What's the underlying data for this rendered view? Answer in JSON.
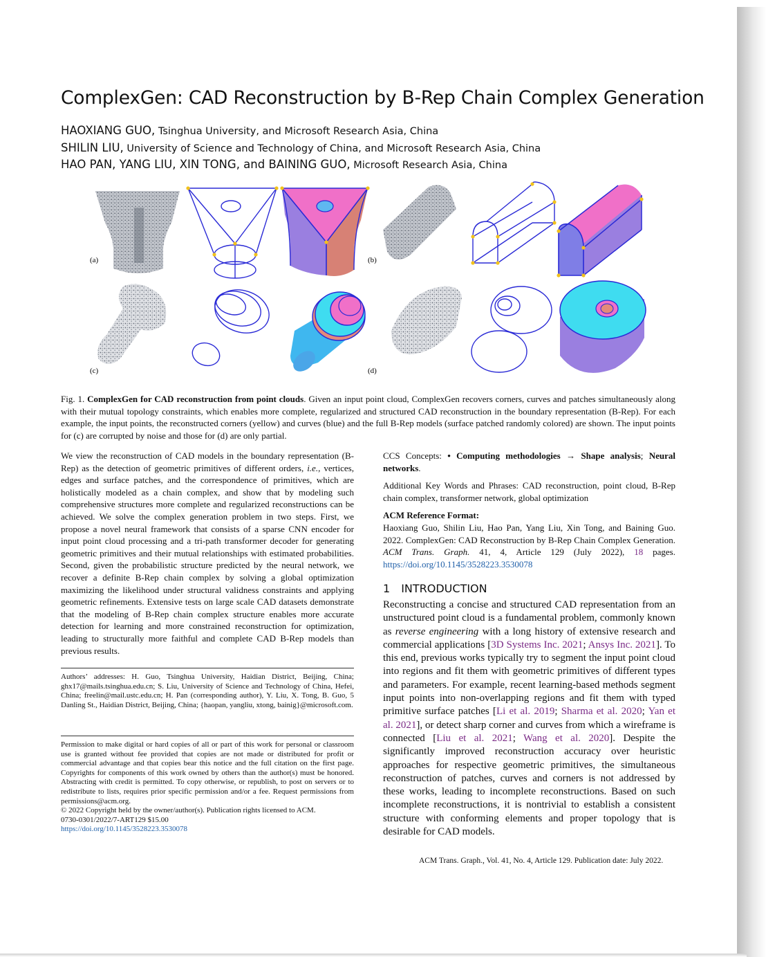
{
  "title": "ComplexGen: CAD Reconstruction by B-Rep Chain Complex Generation",
  "authors": [
    {
      "names": "HAOXIANG GUO,",
      "affiliation": " Tsinghua University, and Microsoft Research Asia, China"
    },
    {
      "names": "SHILIN LIU,",
      "affiliation": " University of Science and Technology of China, and Microsoft Research Asia, China"
    },
    {
      "names": "HAO PAN, YANG LIU, XIN TONG, and BAINING GUO,",
      "affiliation": " Microsoft Research Asia, China"
    }
  ],
  "figure": {
    "labels": [
      "(a)",
      "(b)",
      "(c)",
      "(d)"
    ],
    "colors": {
      "curve": "#2a2ad6",
      "corner": "#f2c21b",
      "pink": "#f070c8",
      "purple": "#9a7fe0",
      "salmon": "#e48a7a",
      "cyan": "#3fdcf0",
      "blue_sky": "#5fb8f0",
      "points": "#7d8591"
    }
  },
  "caption": {
    "prefix": "Fig. 1. ",
    "bold": "ComplexGen for CAD reconstruction from point clouds",
    "text": ". Given an input point cloud, ComplexGen recovers corners, curves and patches simultaneously along with their mutual topology constraints, which enables more complete, regularized and structured CAD reconstruction in the boundary representation (B-Rep). For each example, the input points, the reconstructed corners (yellow) and curves (blue) and the full B-Rep models (surface patched randomly colored) are shown. The input points for (c) are corrupted by noise and those for (d) are only partial."
  },
  "abstract": {
    "p1": "We view the reconstruction of CAD models in the boundary representation (B-Rep) as the detection of geometric primitives of different orders, ",
    "ie": "i.e.",
    "p2": ", vertices, edges and surface patches, and the correspondence of primitives, which are holistically modeled as a chain complex, and show that by modeling such comprehensive structures more complete and regularized reconstructions can be achieved. We solve the complex generation problem in two steps. First, we propose a novel neural framework that consists of a sparse CNN encoder for input point cloud processing and a tri-path transformer decoder for generating geometric primitives and their mutual relationships with estimated probabilities. Second, given the probabilistic structure predicted by the neural network, we recover a definite B-Rep chain complex by solving a global optimization maximizing the likelihood under structural validness constraints and applying geometric refinements. Extensive tests on large scale CAD datasets demonstrate that the modeling of B-Rep chain complex structure enables more accurate detection for learning and more constrained reconstruction for optimization, leading to structurally more faithful and complete CAD B-Rep models than previous results."
  },
  "ccs": {
    "label": "CCS Concepts: ",
    "b1": "• Computing methodologies → Shape analysis",
    "sep": "; ",
    "b2": "Neural networks",
    "end": "."
  },
  "keywords": "Additional Key Words and Phrases: CAD reconstruction, point cloud, B-Rep chain complex, transformer network, global optimization",
  "reference": {
    "heading": "ACM Reference Format:",
    "authors": "Haoxiang Guo, Shilin Liu, Hao Pan, Yang Liu, Xin Tong, and Baining Guo. 2022. ComplexGen: CAD Reconstruction by B-Rep Chain Complex Generation. ",
    "journal": "ACM Trans. Graph.",
    "details": " 41, 4, Article 129 (July 2022), ",
    "pages": "18",
    "pages_suffix": " pages. ",
    "doi": "https://doi.org/10.1145/3528223.3530078"
  },
  "intro": {
    "number": "1",
    "heading": "INTRODUCTION",
    "t1": "Reconstructing a concise and structured CAD representation from an unstructured point cloud is a fundamental problem, commonly known as ",
    "em1": "reverse engineering",
    "t2": " with a long history of extensive research and commercial applications [",
    "c1": "3D Systems Inc. 2021",
    "s1": "; ",
    "c2": "Ansys Inc. 2021",
    "t3": "]. To this end, previous works typically try to segment the input point cloud into regions and fit them with geometric primitives of different types and parameters. For example, recent learning-based methods segment input points into non-overlapping regions and fit them with typed primitive surface patches [",
    "c3": "Li et al. 2019",
    "s2": "; ",
    "c4": "Sharma et al. 2020",
    "s3": "; ",
    "c5": "Yan et al. 2021",
    "t4": "], or detect sharp corner and curves from which a wireframe is connected [",
    "c6": "Liu et al. 2021",
    "s4": "; ",
    "c7": "Wang et al. 2020",
    "t5": "]. Despite the significantly improved reconstruction accuracy over heuristic approaches for respective geometric primitives, the simultaneous reconstruction of patches, curves and corners is not addressed by these works, leading to incomplete reconstructions. Based on such incomplete reconstructions, it is nontrivial to establish a consistent structure with conforming elements and proper topology that is desirable for CAD models."
  },
  "authors_addresses": "Authors’ addresses: H. Guo, Tsinghua University, Haidian District, Beijing, China; ghx17@mails.tsinghua.edu.cn; S. Liu, University of Science and Technology of China, Hefei, China; freelin@mail.ustc.edu.cn; H. Pan (corresponding author), Y. Liu, X. Tong, B. Guo, 5 Danling St., Haidian District, Beijing, China; {haopan, yangliu, xtong, bainig}@microsoft.com.",
  "permission": {
    "text": "Permission to make digital or hard copies of all or part of this work for personal or classroom use is granted without fee provided that copies are not made or distributed for profit or commercial advantage and that copies bear this notice and the full citation on the first page. Copyrights for components of this work owned by others than the author(s) must be honored. Abstracting with credit is permitted. To copy otherwise, or republish, to post on servers or to redistribute to lists, requires prior specific permission and/or a fee. Request permissions from permissions@acm.org.",
    "copyright": "© 2022 Copyright held by the owner/author(s). Publication rights licensed to ACM.",
    "issn": "0730-0301/2022/7-ART129 $15.00",
    "doi": "https://doi.org/10.1145/3528223.3530078"
  },
  "footer": "ACM Trans. Graph., Vol. 41, No. 4, Article 129. Publication date: July 2022."
}
